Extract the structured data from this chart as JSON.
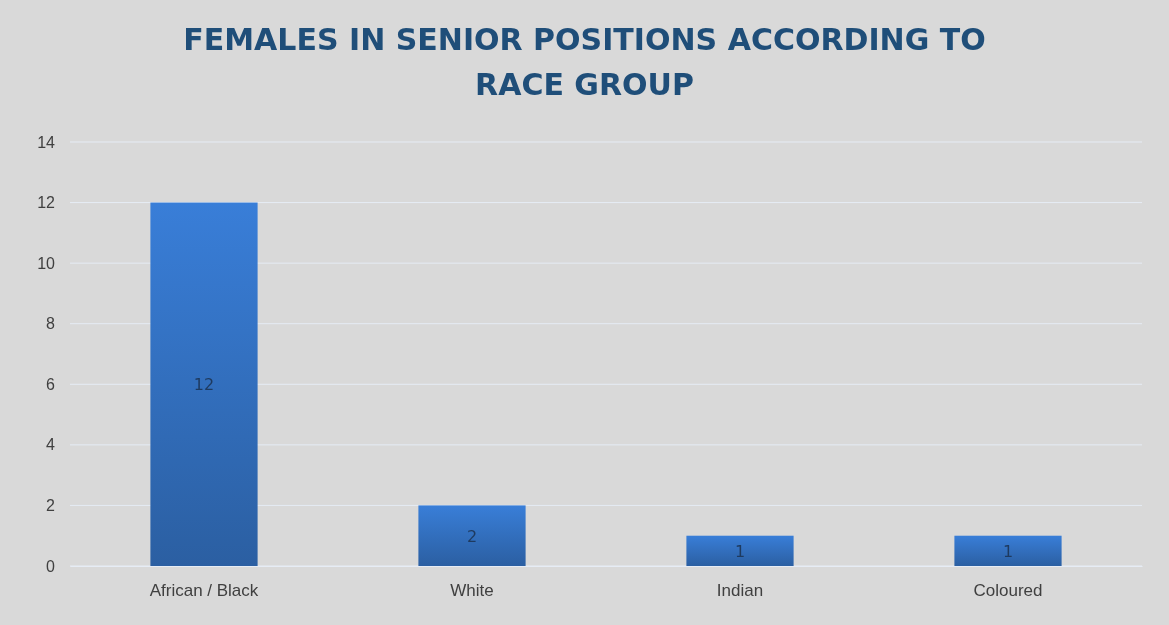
{
  "chart_data": {
    "type": "bar",
    "title": "FEMALES IN SENIOR POSITIONS ACCORDING TO RACE GROUP",
    "categories": [
      "African / Black",
      "White",
      "Indian",
      "Coloured"
    ],
    "values": [
      12,
      2,
      1,
      1
    ],
    "color": "#3371c2",
    "ylim": [
      0,
      14
    ],
    "yticks": [
      0,
      2,
      4,
      6,
      8,
      10,
      12,
      14
    ],
    "grid": "y",
    "data_labels": true
  }
}
